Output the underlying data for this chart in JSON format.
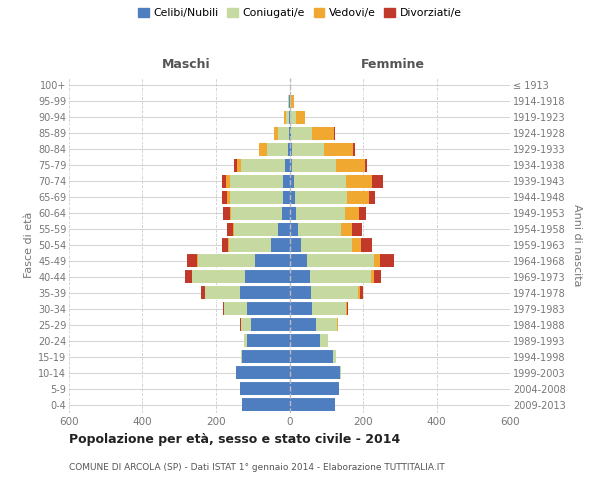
{
  "age_groups": [
    "0-4",
    "5-9",
    "10-14",
    "15-19",
    "20-24",
    "25-29",
    "30-34",
    "35-39",
    "40-44",
    "45-49",
    "50-54",
    "55-59",
    "60-64",
    "65-69",
    "70-74",
    "75-79",
    "80-84",
    "85-89",
    "90-94",
    "95-99",
    "100+"
  ],
  "birth_years": [
    "2009-2013",
    "2004-2008",
    "1999-2003",
    "1994-1998",
    "1989-1993",
    "1984-1988",
    "1979-1983",
    "1974-1978",
    "1969-1973",
    "1964-1968",
    "1959-1963",
    "1954-1958",
    "1949-1953",
    "1944-1948",
    "1939-1943",
    "1934-1938",
    "1929-1933",
    "1924-1928",
    "1919-1923",
    "1914-1918",
    "≤ 1913"
  ],
  "males": {
    "celibe": [
      130,
      135,
      145,
      130,
      115,
      105,
      115,
      135,
      120,
      95,
      50,
      30,
      20,
      18,
      18,
      12,
      4,
      2,
      1,
      1,
      0
    ],
    "coniugato": [
      0,
      0,
      1,
      3,
      8,
      28,
      62,
      95,
      145,
      155,
      115,
      120,
      138,
      145,
      145,
      120,
      58,
      28,
      8,
      2,
      0
    ],
    "vedovo": [
      0,
      0,
      0,
      0,
      0,
      0,
      0,
      0,
      1,
      2,
      2,
      3,
      5,
      8,
      10,
      12,
      20,
      12,
      5,
      1,
      0
    ],
    "divorziato": [
      0,
      0,
      0,
      0,
      1,
      2,
      5,
      12,
      18,
      28,
      18,
      18,
      18,
      12,
      12,
      8,
      2,
      1,
      0,
      0,
      0
    ]
  },
  "females": {
    "nubile": [
      125,
      135,
      138,
      118,
      82,
      72,
      62,
      58,
      55,
      48,
      32,
      22,
      18,
      15,
      13,
      8,
      6,
      3,
      2,
      1,
      0
    ],
    "coniugata": [
      0,
      1,
      2,
      8,
      22,
      58,
      92,
      128,
      168,
      182,
      138,
      118,
      132,
      142,
      142,
      118,
      88,
      58,
      15,
      3,
      1
    ],
    "vedova": [
      0,
      0,
      0,
      0,
      0,
      1,
      2,
      5,
      8,
      15,
      25,
      30,
      40,
      60,
      70,
      80,
      80,
      60,
      25,
      8,
      1
    ],
    "divorziata": [
      0,
      0,
      0,
      0,
      1,
      2,
      3,
      8,
      18,
      38,
      30,
      28,
      18,
      15,
      30,
      5,
      3,
      2,
      1,
      0,
      0
    ]
  },
  "colors": {
    "celibe": "#4f7ec0",
    "coniugato": "#c5d9a0",
    "vedovo": "#f0a830",
    "divorziato": "#c0392b"
  },
  "title": "Popolazione per età, sesso e stato civile - 2014",
  "subtitle": "COMUNE DI ARCOLA (SP) - Dati ISTAT 1° gennaio 2014 - Elaborazione TUTTITALIA.IT",
  "xlabel_left": "Maschi",
  "xlabel_right": "Femmine",
  "ylabel_left": "Fasce di età",
  "ylabel_right": "Anni di nascita",
  "xlim": 600,
  "legend_labels": [
    "Celibi/Nubili",
    "Coniugati/e",
    "Vedovi/e",
    "Divorziati/e"
  ],
  "background_color": "#ffffff",
  "bar_height": 0.82
}
